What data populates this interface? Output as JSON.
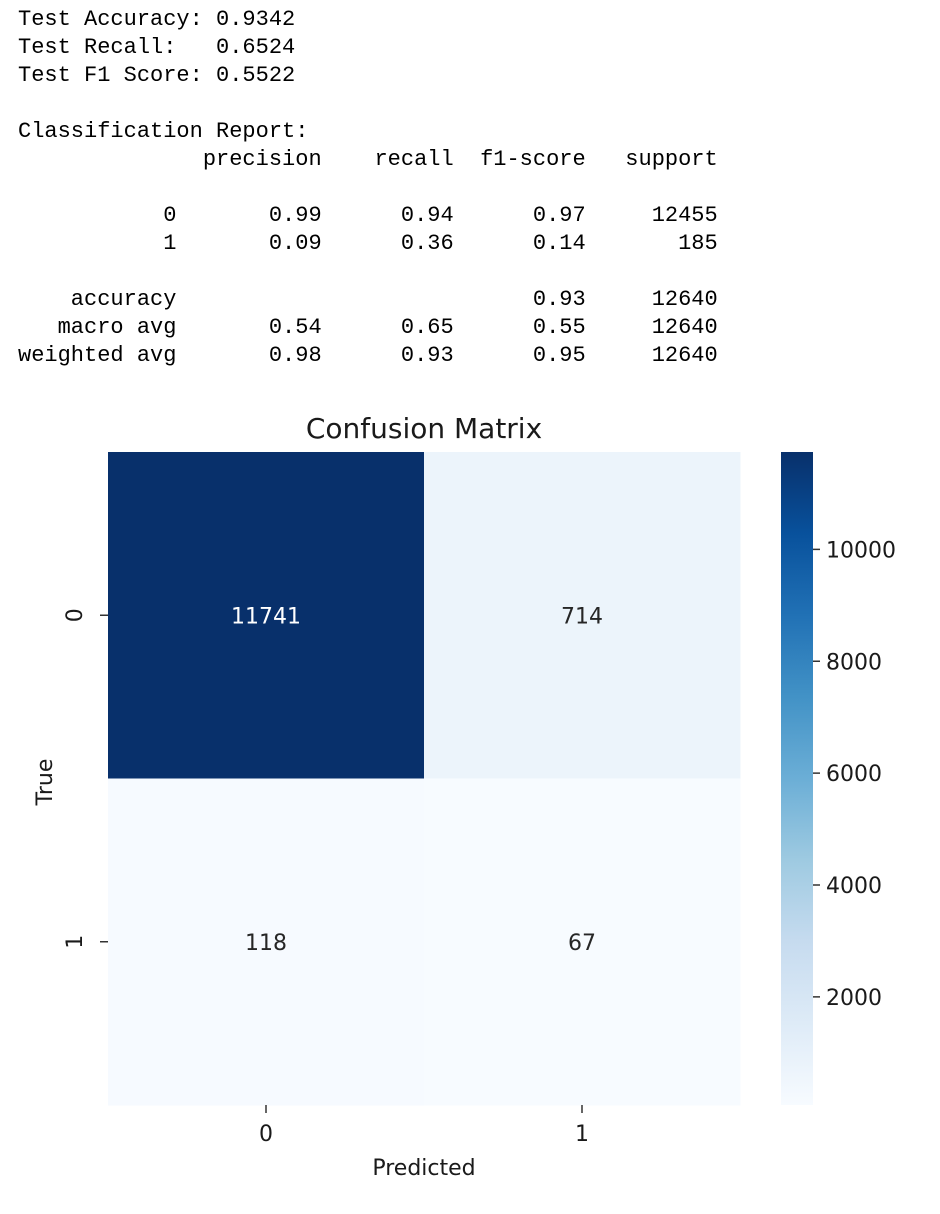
{
  "output": {
    "metrics": [
      "Test Accuracy: 0.9342",
      "Test Recall:   0.6524",
      "Test F1 Score: 0.5522"
    ],
    "report_title": "Classification Report:",
    "report_lines": [
      "              precision    recall  f1-score   support",
      "",
      "           0       0.99      0.94      0.97     12455",
      "           1       0.09      0.36      0.14       185",
      "",
      "    accuracy                           0.93     12640",
      "   macro avg       0.54      0.65      0.55     12640",
      "weighted avg       0.98      0.93      0.95     12640"
    ]
  },
  "chart_data": {
    "type": "heatmap",
    "title": "Confusion Matrix",
    "xlabel": "Predicted",
    "ylabel": "True",
    "x_categories": [
      "0",
      "1"
    ],
    "y_categories": [
      "0",
      "1"
    ],
    "values": [
      [
        11741,
        714
      ],
      [
        118,
        67
      ]
    ],
    "colormap": "Blues",
    "colorbar": {
      "min": 67,
      "max": 11741,
      "ticks": [
        2000,
        4000,
        6000,
        8000,
        10000
      ],
      "tick_labels": [
        "2000",
        "4000",
        "6000",
        "8000",
        "10000"
      ]
    },
    "grid": false,
    "legend": "colorbar-right"
  }
}
